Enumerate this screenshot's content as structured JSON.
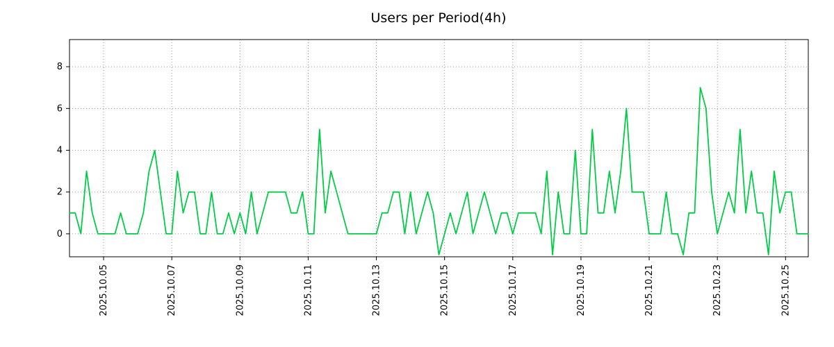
{
  "chart_data": {
    "type": "line",
    "title": "Users per Period(4h)",
    "xlabel": "",
    "ylabel": "",
    "x_start": "2025-10-04 00:00",
    "step_hours": 4,
    "values": [
      1,
      1,
      0,
      3,
      1,
      0,
      0,
      0,
      0,
      1,
      0,
      0,
      0,
      1,
      3,
      4,
      2,
      0,
      0,
      3,
      1,
      2,
      2,
      0,
      0,
      2,
      0,
      0,
      1,
      0,
      1,
      0,
      2,
      0,
      1,
      2,
      2,
      2,
      2,
      1,
      1,
      2,
      0,
      0,
      5,
      1,
      3,
      2,
      1,
      0,
      0,
      0,
      0,
      0,
      0,
      1,
      1,
      2,
      2,
      0,
      2,
      0,
      1,
      2,
      1,
      -1,
      0,
      1,
      0,
      1,
      2,
      0,
      1,
      2,
      1,
      0,
      1,
      1,
      0,
      1,
      1,
      1,
      1,
      0,
      3,
      -1,
      2,
      0,
      0,
      4,
      0,
      0,
      5,
      1,
      1,
      3,
      1,
      3,
      6,
      2,
      2,
      2,
      0,
      0,
      0,
      2,
      0,
      0,
      -1,
      1,
      1,
      7,
      6,
      2,
      0,
      1,
      2,
      1,
      5,
      1,
      3,
      1,
      1,
      -1,
      3,
      1,
      2,
      2,
      0,
      0,
      0
    ],
    "x_tick_labels": [
      "2025.10.05",
      "2025.10.07",
      "2025.10.09",
      "2025.10.11",
      "2025.10.13",
      "2025.10.15",
      "2025.10.17",
      "2025.10.19",
      "2025.10.21",
      "2025.10.23",
      "2025.10.25"
    ],
    "x_tick_start_hours": 24,
    "x_tick_step_hours": 48,
    "y_ticks": [
      0,
      2,
      4,
      6,
      8
    ],
    "ylim": [
      -1.1,
      9.3
    ],
    "line_color": "#00cc44",
    "grid": true,
    "grid_color": "#999999",
    "axis_color": "#000000",
    "legend_position": "none"
  }
}
